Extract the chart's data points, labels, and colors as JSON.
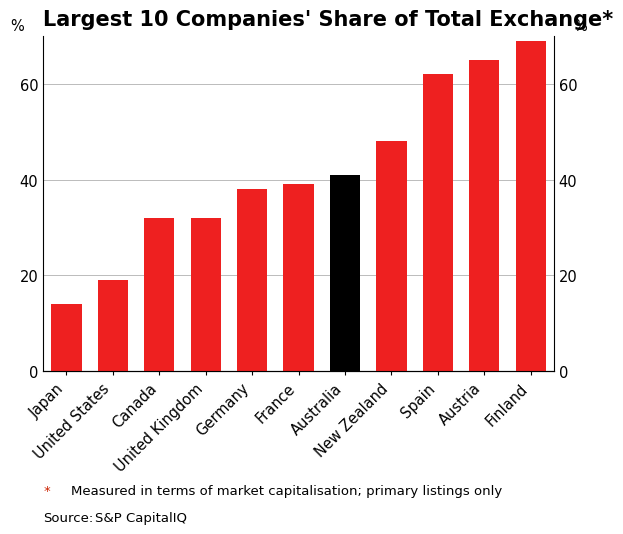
{
  "title": "Largest 10 Companies' Share of Total Exchange*",
  "categories": [
    "Japan",
    "United States",
    "Canada",
    "United Kingdom",
    "Germany",
    "France",
    "Australia",
    "New Zealand",
    "Spain",
    "Austria",
    "Finland"
  ],
  "values": [
    14,
    19,
    32,
    32,
    38,
    39,
    41,
    48,
    62,
    65,
    69
  ],
  "bar_colors": [
    "#ee2020",
    "#ee2020",
    "#ee2020",
    "#ee2020",
    "#ee2020",
    "#ee2020",
    "#000000",
    "#ee2020",
    "#ee2020",
    "#ee2020",
    "#ee2020"
  ],
  "ylim": [
    0,
    70
  ],
  "yticks": [
    0,
    20,
    40,
    60
  ],
  "ylabel_left": "%",
  "ylabel_right": "%",
  "footnote_star": "*",
  "footnote_text": "Measured in terms of market capitalisation; primary listings only",
  "source_label": "Source:",
  "source_text": "S&P CapitalIQ",
  "footnote_color": "#cc2200",
  "grid_color": "#bbbbbb",
  "title_fontsize": 15,
  "tick_fontsize": 10.5,
  "footnote_fontsize": 9.5,
  "source_fontsize": 9.5,
  "bar_width": 0.65
}
